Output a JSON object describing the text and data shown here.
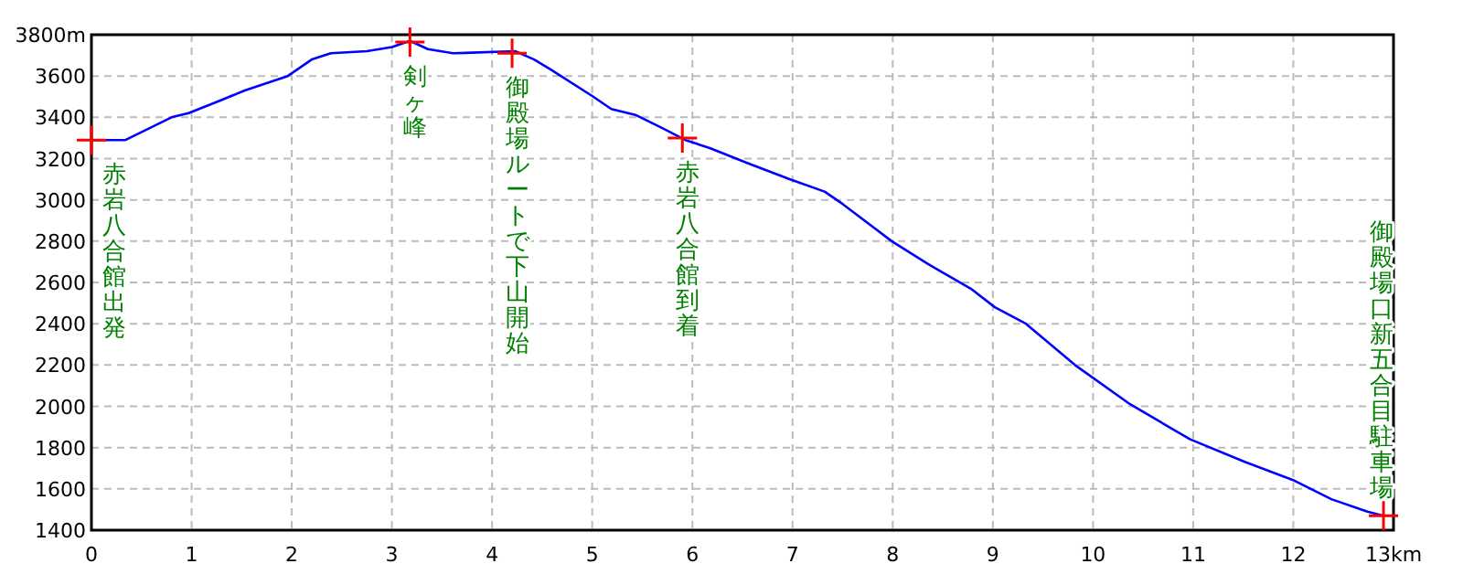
{
  "chart_data": {
    "type": "line",
    "x": [
      0,
      0.34,
      0.8,
      0.97,
      1.28,
      1.53,
      1.96,
      2.2,
      2.39,
      2.75,
      3.0,
      3.18,
      3.36,
      3.61,
      4.23,
      4.28,
      4.42,
      4.59,
      5.01,
      5.19,
      5.44,
      5.69,
      5.93,
      6.18,
      6.54,
      6.97,
      7.32,
      7.5,
      7.99,
      8.35,
      8.78,
      9.02,
      9.33,
      9.82,
      10.37,
      10.97,
      11.52,
      12.01,
      12.38,
      12.74,
      12.9
    ],
    "series": [
      {
        "color": "#0000ff",
        "values": [
          3290,
          3290,
          3400,
          3420,
          3480,
          3530,
          3600,
          3680,
          3710,
          3720,
          3740,
          3770,
          3730,
          3710,
          3720,
          3710,
          3680,
          3630,
          3500,
          3440,
          3410,
          3350,
          3290,
          3250,
          3180,
          3100,
          3040,
          2980,
          2800,
          2690,
          2570,
          2480,
          2400,
          2200,
          2010,
          1840,
          1730,
          1640,
          1550,
          1490,
          1470
        ]
      }
    ],
    "xlim": [
      0,
      13
    ],
    "ylim": [
      1400,
      3800
    ],
    "xticks": [
      0,
      1,
      2,
      3,
      4,
      5,
      6,
      7,
      8,
      9,
      10,
      11,
      12,
      {
        "value": 13,
        "label": "13km"
      }
    ],
    "yticks": [
      1400,
      1600,
      1800,
      2000,
      2200,
      2400,
      2600,
      2800,
      3000,
      3200,
      3400,
      3600,
      {
        "value": 3800,
        "label": "3800m"
      }
    ],
    "grid": true,
    "marker": "none",
    "line_style": "solid",
    "annotations": [
      {
        "text": "赤岩八合館出発",
        "x": 0,
        "y": 3290
      },
      {
        "text": "剣ヶ峰",
        "x": 3.18,
        "y": 3765
      },
      {
        "text": "御殿場ルートで下山開始",
        "x": 4.2,
        "y": 3710
      },
      {
        "text": "赤岩八合館到着",
        "x": 5.9,
        "y": 3300
      },
      {
        "text": "御殿場口新五合目駐車場",
        "x": 12.9,
        "y": 1470
      }
    ]
  }
}
